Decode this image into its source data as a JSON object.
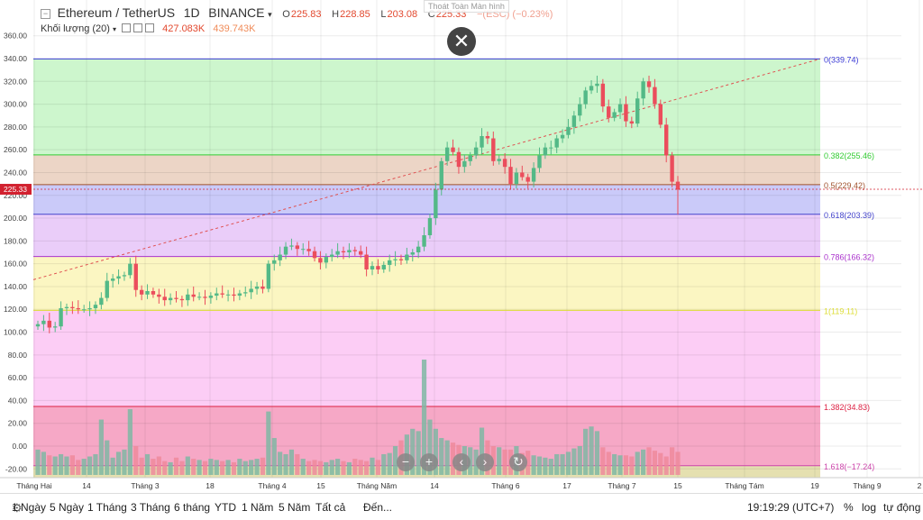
{
  "header": {
    "symbol": "Ethereum / TetherUS",
    "interval": "1D",
    "exchange": "BINANCE",
    "o_label": "O",
    "o_value": "225.83",
    "h_label": "H",
    "h_value": "228.85",
    "l_label": "L",
    "l_value": "203.08",
    "c_label": "C",
    "c_value": "225.33",
    "change": "−(ESC) (−0.23%)",
    "tooltip": "Thoát Toàn Màn hình"
  },
  "volume_legend": {
    "label": "Khối lượng (20)",
    "v1": "427.083K",
    "v2": "439.743K"
  },
  "price_badge": "225.33",
  "bottom_bar": {
    "ranges": [
      "1 Ngày",
      "5 Ngày",
      "1 Tháng",
      "3 Tháng",
      "6 tháng",
      "YTD",
      "1 Năm",
      "5 Năm",
      "Tất cả",
      "Đến..."
    ],
    "time": "19:19:29 (UTC+7)",
    "percent": "%",
    "log": "log",
    "auto": "tự động"
  },
  "colors": {
    "up": "#53b987",
    "down": "#eb4d5c",
    "accent": "#e2482e"
  },
  "chart_data": {
    "type": "candlestick",
    "y_ticks": [
      -20,
      0,
      20,
      40,
      60,
      80,
      100,
      120,
      140,
      160,
      180,
      200,
      220,
      240,
      260,
      280,
      300,
      320,
      340,
      360
    ],
    "y_tick_labels": [
      "-20.00",
      "0.00",
      "20.00",
      "40.00",
      "60.00",
      "80.00",
      "100.00",
      "120.00",
      "140.00",
      "160.00",
      "180.00",
      "200.00",
      "220.00",
      "240.00",
      "260.00",
      "280.00",
      "300.00",
      "320.00",
      "340.00",
      "360.00"
    ],
    "ylim": [
      -25,
      368
    ],
    "x_tick_labels": [
      "Tháng Hai",
      "14",
      "Tháng 3",
      "18",
      "Tháng 4",
      "15",
      "Tháng Năm",
      "14",
      "Tháng 6",
      "17",
      "Tháng 7",
      "15",
      "Tháng Tám",
      "19",
      "Tháng 9",
      "2"
    ],
    "fib_levels": [
      {
        "label": "0(339.74)",
        "value": 339.74,
        "color": "#3b3bd6"
      },
      {
        "label": "0.382(255.46)",
        "value": 255.46,
        "color": "#33cc33"
      },
      {
        "label": "0.5(229.42)",
        "value": 229.42,
        "color": "#a0522d"
      },
      {
        "label": "0.618(203.39)",
        "value": 203.39,
        "color": "#4444cc"
      },
      {
        "label": "0.786(166.32)",
        "value": 166.32,
        "color": "#aa33cc"
      },
      {
        "label": "1(119.11)",
        "value": 119.11,
        "color": "#dddd33"
      },
      {
        "label": "1.382(34.83)",
        "value": 34.83,
        "color": "#dd2244"
      },
      {
        "label": "1.618(−17.24)",
        "value": -17.24,
        "color": "#cc44aa"
      }
    ],
    "fib_zone_colors": [
      "#c8f5c8",
      "#ead0c0",
      "#c4c4f8",
      "#e8c8f8",
      "#fbf5bb",
      "#fcc8f4",
      "#f59ec0",
      "#e5e0b0"
    ],
    "close_prices": [
      107,
      110,
      104,
      105,
      121,
      122,
      121,
      120,
      120,
      121,
      124,
      130,
      145,
      147,
      149,
      150,
      160,
      137,
      133,
      136,
      133,
      131,
      128,
      130,
      129,
      128,
      133,
      131,
      131,
      130,
      132,
      134,
      133,
      133,
      132,
      134,
      135,
      138,
      140,
      138,
      160,
      163,
      168,
      175,
      176,
      173,
      173,
      171,
      165,
      161,
      166,
      168,
      171,
      170,
      172,
      171,
      168,
      155,
      158,
      155,
      159,
      163,
      164,
      163,
      168,
      170,
      175,
      185,
      200,
      225,
      250,
      262,
      258,
      245,
      250,
      255,
      262,
      272,
      270,
      250,
      252,
      245,
      230,
      240,
      236,
      232,
      244,
      255,
      262,
      262,
      270,
      273,
      280,
      290,
      300,
      312,
      316,
      318,
      298,
      288,
      293,
      300,
      285,
      283,
      305,
      320,
      315,
      300,
      282,
      255,
      232,
      225
    ],
    "volume": [
      22,
      20,
      17,
      16,
      18,
      16,
      17,
      13,
      14,
      16,
      18,
      48,
      30,
      15,
      20,
      22,
      57,
      25,
      15,
      18,
      14,
      16,
      12,
      11,
      15,
      12,
      16,
      14,
      13,
      12,
      14,
      13,
      12,
      13,
      11,
      14,
      12,
      13,
      14,
      15,
      55,
      32,
      20,
      18,
      22,
      18,
      14,
      12,
      13,
      12,
      11,
      13,
      14,
      12,
      11,
      14,
      13,
      12,
      15,
      13,
      18,
      19,
      25,
      30,
      35,
      40,
      38,
      100,
      48,
      40,
      32,
      30,
      28,
      26,
      25,
      24,
      22,
      41,
      30,
      25,
      24,
      22,
      22,
      25,
      19,
      21,
      17,
      16,
      15,
      14,
      18,
      18,
      20,
      23,
      25,
      40,
      42,
      38,
      24,
      20,
      18,
      17,
      17,
      16,
      20,
      22,
      24,
      21,
      19,
      16,
      24,
      20
    ]
  }
}
